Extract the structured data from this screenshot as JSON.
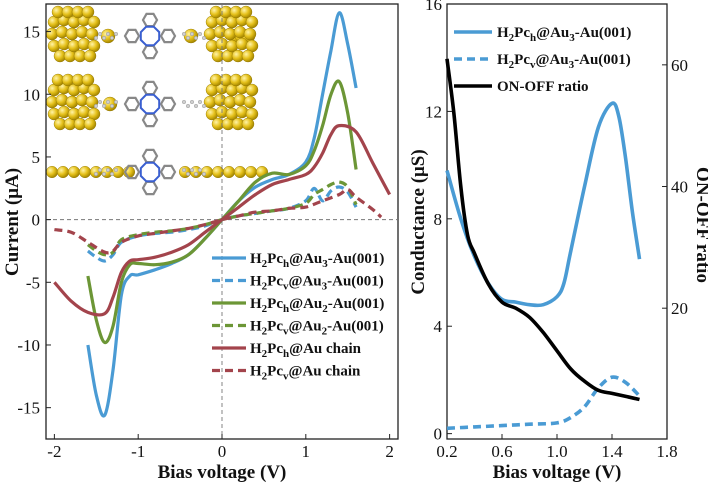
{
  "chart_data": [
    {
      "type": "line",
      "xlabel": "Bias voltage (V)",
      "ylabel": "Current (μA)",
      "xlim": [
        -2.1,
        2.1
      ],
      "ylim": [
        -17.5,
        17.2
      ],
      "xticks": [
        "-2",
        "-1",
        "0",
        "1",
        "2"
      ],
      "yticks": [
        "-15",
        "-10",
        "-5",
        "0",
        "5",
        "10",
        "15"
      ],
      "legend_position": "lower-right",
      "series": [
        {
          "name": "H2Pch@Au3-Au(001)",
          "label_main": "H",
          "label_s1": "2",
          "label_mid": "Pc",
          "label_s2": "h",
          "label_end": "@Au",
          "label_s3": "3",
          "label_tail": "-Au(001)",
          "color": "#4a9bd4",
          "dash": false,
          "x": [
            -1.6,
            -1.5,
            -1.4,
            -1.3,
            -1.2,
            -1.1,
            -1.0,
            -0.8,
            -0.6,
            -0.4,
            -0.2,
            0.0,
            0.2,
            0.4,
            0.6,
            0.8,
            1.0,
            1.1,
            1.2,
            1.3,
            1.4,
            1.5,
            1.6
          ],
          "y": [
            -10,
            -14,
            -15.6,
            -12,
            -6,
            -4.5,
            -4.4,
            -4,
            -3.5,
            -2.8,
            -1.5,
            0,
            1.5,
            2.6,
            3.2,
            3.6,
            4.6,
            6.5,
            10,
            13.5,
            16.5,
            14,
            10.5
          ]
        },
        {
          "name": "H2Pcv@Au3-Au(001)",
          "label_main": "H",
          "label_s1": "2",
          "label_mid": "Pc",
          "label_s2": "v",
          "label_end": "@Au",
          "label_s3": "3",
          "label_tail": "-Au(001)",
          "color": "#4a9bd4",
          "dash": true,
          "x": [
            -1.6,
            -1.5,
            -1.4,
            -1.3,
            -1.2,
            -1.0,
            -0.8,
            -0.6,
            -0.4,
            -0.2,
            0.0,
            0.2,
            0.4,
            0.6,
            0.8,
            1.0,
            1.1,
            1.2,
            1.3,
            1.4,
            1.5,
            1.6
          ],
          "y": [
            -2.5,
            -3,
            -3.3,
            -2.8,
            -1.8,
            -1.3,
            -1.1,
            -1,
            -0.8,
            -0.5,
            0,
            0.3,
            0.5,
            0.7,
            0.9,
            1.5,
            2.5,
            1.5,
            2.3,
            2.6,
            2.2,
            1.0
          ]
        },
        {
          "name": "H2Pch@Au2-Au(001)",
          "label_main": "H",
          "label_s1": "2",
          "label_mid": "Pc",
          "label_s2": "h",
          "label_end": "@Au",
          "label_s3": "2",
          "label_tail": "-Au(001)",
          "color": "#6c9636",
          "dash": false,
          "x": [
            -1.6,
            -1.5,
            -1.4,
            -1.3,
            -1.2,
            -1.1,
            -1.0,
            -0.8,
            -0.6,
            -0.4,
            -0.2,
            0.0,
            0.2,
            0.4,
            0.6,
            0.8,
            1.0,
            1.1,
            1.2,
            1.3,
            1.4,
            1.5,
            1.6
          ],
          "y": [
            -4.5,
            -8,
            -9.8,
            -8.5,
            -5,
            -3.6,
            -3.5,
            -3.6,
            -3.4,
            -2.8,
            -1.5,
            0,
            1.5,
            3.0,
            3.7,
            3.6,
            4.3,
            5.5,
            7.5,
            10,
            11,
            8.5,
            4
          ]
        },
        {
          "name": "H2Pcv@Au2-Au(001)",
          "label_main": "H",
          "label_s1": "2",
          "label_mid": "Pc",
          "label_s2": "v",
          "label_end": "@Au",
          "label_s3": "2",
          "label_tail": "-Au(001)",
          "color": "#6c9636",
          "dash": true,
          "x": [
            -1.6,
            -1.5,
            -1.4,
            -1.3,
            -1.2,
            -1.0,
            -0.8,
            -0.6,
            -0.4,
            -0.2,
            0.0,
            0.2,
            0.4,
            0.6,
            0.8,
            1.0,
            1.1,
            1.2,
            1.3,
            1.4,
            1.5,
            1.6
          ],
          "y": [
            -2.0,
            -2.5,
            -2.8,
            -2.6,
            -1.6,
            -1.2,
            -1.0,
            -0.9,
            -0.7,
            -0.4,
            0,
            0.3,
            0.5,
            0.7,
            0.9,
            1.3,
            2.0,
            2.4,
            2.8,
            3.0,
            2.6,
            1.2
          ]
        },
        {
          "name": "H2Pch@Au chain",
          "label_main": "H",
          "label_s1": "2",
          "label_mid": "Pc",
          "label_s2": "h",
          "label_end": "@Au chain",
          "label_s3": "",
          "label_tail": "",
          "color": "#a3444c",
          "dash": false,
          "x": [
            -2.0,
            -1.8,
            -1.6,
            -1.4,
            -1.3,
            -1.2,
            -1.1,
            -1.0,
            -0.8,
            -0.6,
            -0.4,
            -0.2,
            0.0,
            0.2,
            0.4,
            0.6,
            0.8,
            1.0,
            1.1,
            1.2,
            1.3,
            1.4,
            1.6,
            1.8,
            2.0
          ],
          "y": [
            -5,
            -6.5,
            -7.4,
            -7.5,
            -6.2,
            -4.2,
            -3.3,
            -3.2,
            -3.0,
            -2.6,
            -2.0,
            -1.0,
            0,
            1.0,
            2.0,
            2.8,
            3.2,
            3.6,
            4.2,
            5.3,
            6.8,
            7.5,
            7.0,
            4.5,
            2.0
          ]
        },
        {
          "name": "H2Pcv@Au chain",
          "label_main": "H",
          "label_s1": "2",
          "label_mid": "Pc",
          "label_s2": "v",
          "label_end": "@Au chain",
          "label_s3": "",
          "label_tail": "",
          "color": "#a3444c",
          "dash": true,
          "x": [
            -2.0,
            -1.8,
            -1.6,
            -1.4,
            -1.3,
            -1.2,
            -1.0,
            -0.8,
            -0.6,
            -0.4,
            -0.2,
            0.0,
            0.2,
            0.4,
            0.6,
            0.8,
            1.0,
            1.2,
            1.4,
            1.5,
            1.6,
            1.8,
            1.9
          ],
          "y": [
            -0.8,
            -1.0,
            -1.8,
            -2.6,
            -2.5,
            -1.8,
            -1.3,
            -1.1,
            -0.9,
            -0.7,
            -0.4,
            0,
            0.3,
            0.6,
            0.7,
            0.9,
            1.0,
            1.5,
            2.0,
            2.4,
            1.8,
            0.8,
            0.2
          ]
        }
      ]
    },
    {
      "type": "line",
      "xlabel": "Bias voltage (V)",
      "ylabel": "Conductance (μS)",
      "y2label": "ON-OFF ratio",
      "xlim": [
        0.2,
        1.8
      ],
      "ylim": [
        -0.2,
        16
      ],
      "y2lim": [
        -1.5,
        70
      ],
      "xticks": [
        "0.2",
        "0.6",
        "1.0",
        "1.4",
        "1.8"
      ],
      "yticks": [
        "0",
        "4",
        "8",
        "12",
        "16"
      ],
      "y2ticks": [
        "20",
        "40",
        "60"
      ],
      "legend_position": "top-right",
      "series": [
        {
          "name": "H2Pch@Au3-Au(001)",
          "label_main": "H",
          "label_s1": "2",
          "label_mid": "Pc",
          "label_s2": "h",
          "label_end": "@Au",
          "label_s3": "3",
          "label_tail": "-Au(001)",
          "axis": "left",
          "color": "#4a9bd4",
          "dash": false,
          "x": [
            0.2,
            0.3,
            0.4,
            0.5,
            0.6,
            0.7,
            0.8,
            0.9,
            1.0,
            1.05,
            1.1,
            1.2,
            1.3,
            1.4,
            1.45,
            1.5,
            1.55,
            1.6
          ],
          "y": [
            9.8,
            8.0,
            6.6,
            5.6,
            5.0,
            4.9,
            4.8,
            4.8,
            5.1,
            5.6,
            6.8,
            9.2,
            11.4,
            12.3,
            11.8,
            10.2,
            8.2,
            6.5
          ]
        },
        {
          "name": "H2Pcv@Au3-Au(001)",
          "label_main": "H",
          "label_s1": "2",
          "label_mid": "Pc",
          "label_s2": "v",
          "label_end": "@Au",
          "label_s3": "3",
          "label_tail": "-Au(001)",
          "axis": "left",
          "color": "#4a9bd4",
          "dash": true,
          "x": [
            0.2,
            0.4,
            0.6,
            0.8,
            1.0,
            1.1,
            1.2,
            1.3,
            1.4,
            1.5,
            1.6
          ],
          "y": [
            0.2,
            0.25,
            0.3,
            0.35,
            0.4,
            0.6,
            1.0,
            1.7,
            2.1,
            1.9,
            1.4
          ]
        },
        {
          "name": "ON-OFF ratio",
          "label_main": "ON-OFF ratio",
          "label_s1": "",
          "label_mid": "",
          "label_s2": "",
          "label_end": "",
          "label_s3": "",
          "label_tail": "",
          "axis": "right",
          "color": "#000000",
          "dash": false,
          "x": [
            0.2,
            0.25,
            0.3,
            0.35,
            0.4,
            0.5,
            0.6,
            0.7,
            0.8,
            0.9,
            1.0,
            1.1,
            1.2,
            1.3,
            1.4,
            1.5,
            1.6
          ],
          "y": [
            61,
            52,
            40,
            32,
            29,
            24,
            21,
            20,
            18.5,
            16,
            13,
            10,
            8,
            6.5,
            6,
            5.5,
            5
          ]
        }
      ]
    }
  ]
}
